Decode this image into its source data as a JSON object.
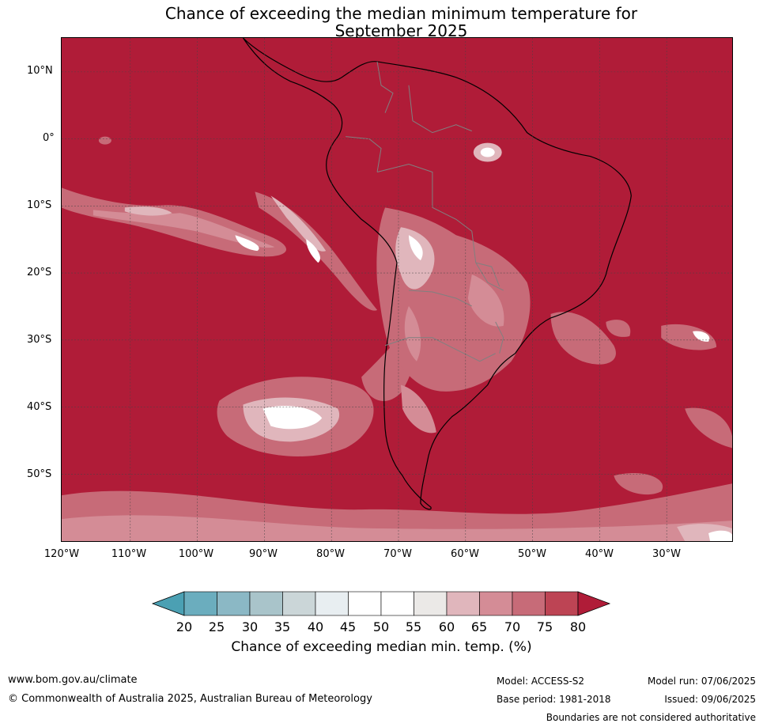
{
  "title": {
    "line1": "Chance of exceeding the median minimum temperature for",
    "line2": "September 2025"
  },
  "map": {
    "background_color": "#b01c38",
    "coast_color": "#000000",
    "border_color": "#808080",
    "lat_labels": [
      "10°N",
      "0°",
      "10°S",
      "20°S",
      "30°S",
      "40°S",
      "50°S"
    ],
    "lon_labels": [
      "120°W",
      "110°W",
      "100°W",
      "90°W",
      "80°W",
      "70°W",
      "60°W",
      "50°W",
      "40°W",
      "30°W"
    ]
  },
  "colorbar": {
    "labels": [
      "20",
      "25",
      "30",
      "35",
      "40",
      "45",
      "50",
      "55",
      "60",
      "65",
      "70",
      "75",
      "80"
    ],
    "colors": [
      "#4ba0b3",
      "#6badbe",
      "#8bb8c5",
      "#a9c4ca",
      "#cbd6d8",
      "#e8eef1",
      "#ffffff",
      "#ffffff",
      "#ebe9e7",
      "#e0b6bc",
      "#d48c96",
      "#c76b78",
      "#bd4454",
      "#b01c38"
    ],
    "title": "Chance of exceeding median min. temp. (%)"
  },
  "footer": {
    "url": "www.bom.gov.au/climate",
    "copyright": "© Commonwealth of Australia 2025, Australian Bureau of Meteorology",
    "model": "Model: ACCESS-S2",
    "base_period": "Base period: 1981-2018",
    "model_run": "Model run: 07/06/2025",
    "issued": "Issued: 09/06/2025",
    "disclaimer": "Boundaries are not considered authoritative"
  }
}
